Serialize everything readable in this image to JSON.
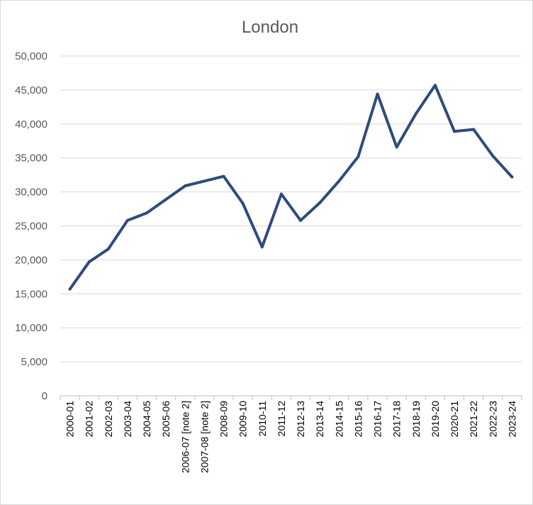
{
  "chart_data": {
    "type": "line",
    "title": "London",
    "xlabel": "",
    "ylabel": "",
    "ylim": [
      0,
      50000
    ],
    "ytick_step": 5000,
    "yticks": [
      "0",
      "5,000",
      "10,000",
      "15,000",
      "20,000",
      "25,000",
      "30,000",
      "35,000",
      "40,000",
      "45,000",
      "50,000"
    ],
    "grid": true,
    "legend": "none",
    "categories": [
      "2000-01",
      "2001-02",
      "2002-03",
      "2003-04",
      "2004-05",
      "2005-06",
      "2006-07 [note 2]",
      "2007-08 [note 2]",
      "2008-09",
      "2009-10",
      "2010-11",
      "2011-12",
      "2012-13",
      "2013-14",
      "2014-15",
      "2015-16",
      "2016-17",
      "2017-18",
      "2018-19",
      "2019-20",
      "2020-21",
      "2021-22",
      "2022-23",
      "2023-24"
    ],
    "series": [
      {
        "values": [
          15700,
          19700,
          21600,
          25800,
          26900,
          28900,
          30900,
          31600,
          32300,
          28300,
          21900,
          29700,
          25800,
          28400,
          31600,
          35200,
          44400,
          36600,
          41500,
          45700,
          38900,
          39200,
          35300,
          32200
        ],
        "color": "#2f4b7c"
      }
    ],
    "colors": {
      "line": "#2f4b7c",
      "grid": "#d9d9d9",
      "axis": "#bfbfbf",
      "text": "#595959"
    }
  }
}
